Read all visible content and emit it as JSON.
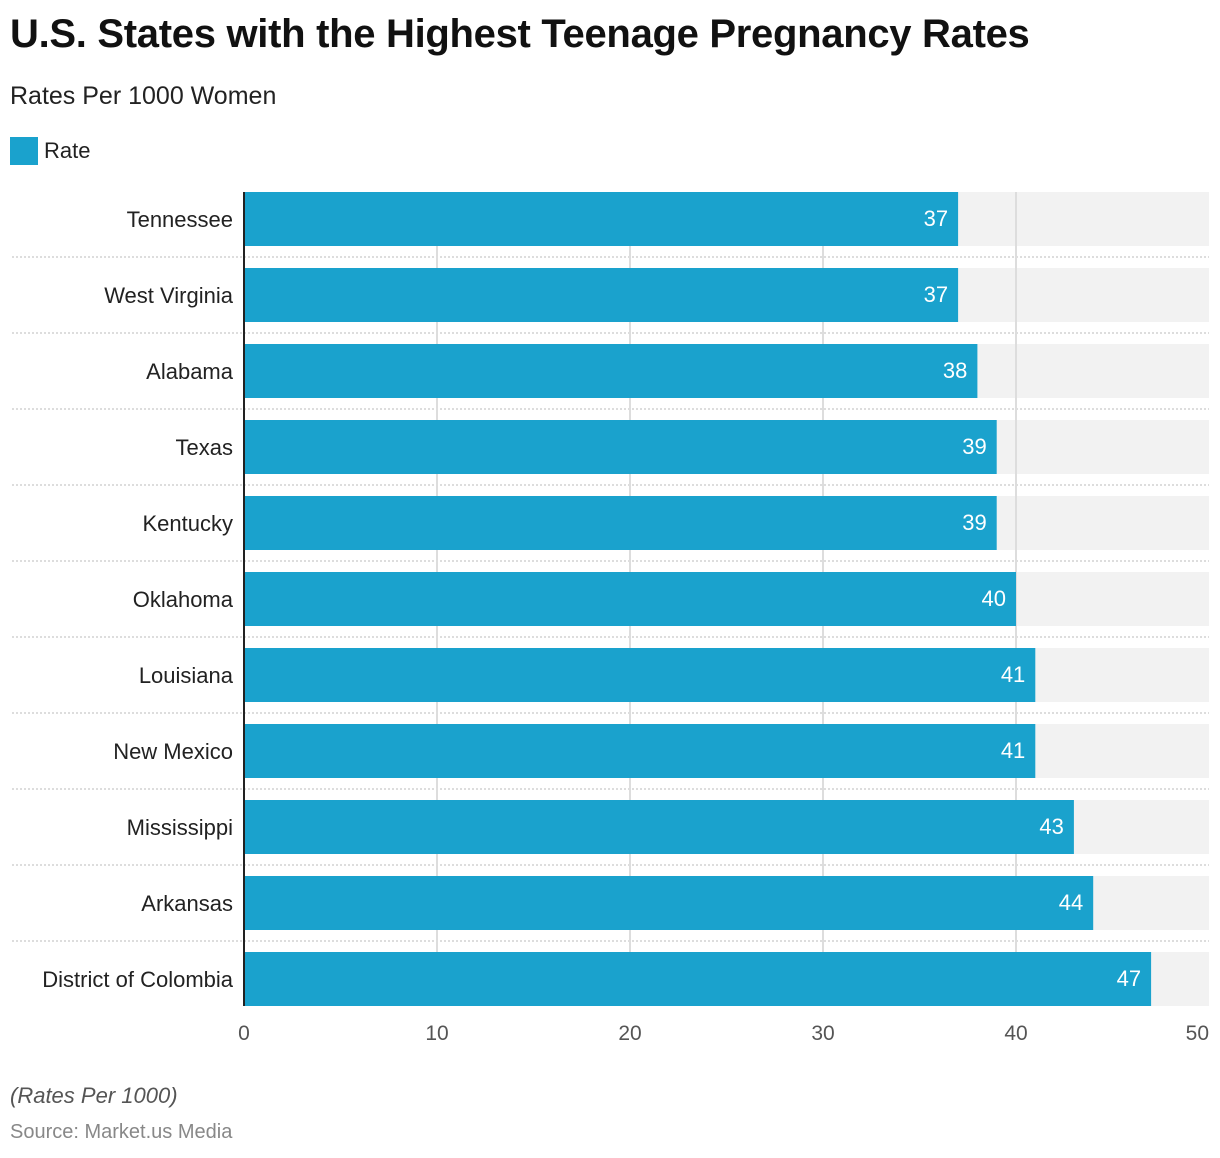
{
  "chart_data": {
    "type": "bar",
    "orientation": "horizontal",
    "title": "U.S. States with the Highest Teenage Pregnancy Rates",
    "subtitle": "Rates Per 1000 Women",
    "legend": [
      "Rate"
    ],
    "legend_placement": "top-left",
    "categories": [
      "Tennessee",
      "West Virginia",
      "Alabama",
      "Texas",
      "Kentucky",
      "Oklahoma",
      "Louisiana",
      "New Mexico",
      "Mississippi",
      "Arkansas",
      "District of Colombia"
    ],
    "series": [
      {
        "name": "Rate",
        "values": [
          37,
          37,
          38,
          39,
          39,
          40,
          41,
          41,
          43,
          44,
          47
        ]
      }
    ],
    "xlim": [
      0,
      50
    ],
    "xticks": [
      0,
      10,
      20,
      30,
      40,
      50
    ],
    "grid": true,
    "colors": {
      "bar": "#1aa2cd",
      "track": "#f2f2f2",
      "grid": "#dddddd"
    }
  },
  "footer": {
    "note": "(Rates Per 1000)",
    "source": "Source: Market.us Media"
  }
}
